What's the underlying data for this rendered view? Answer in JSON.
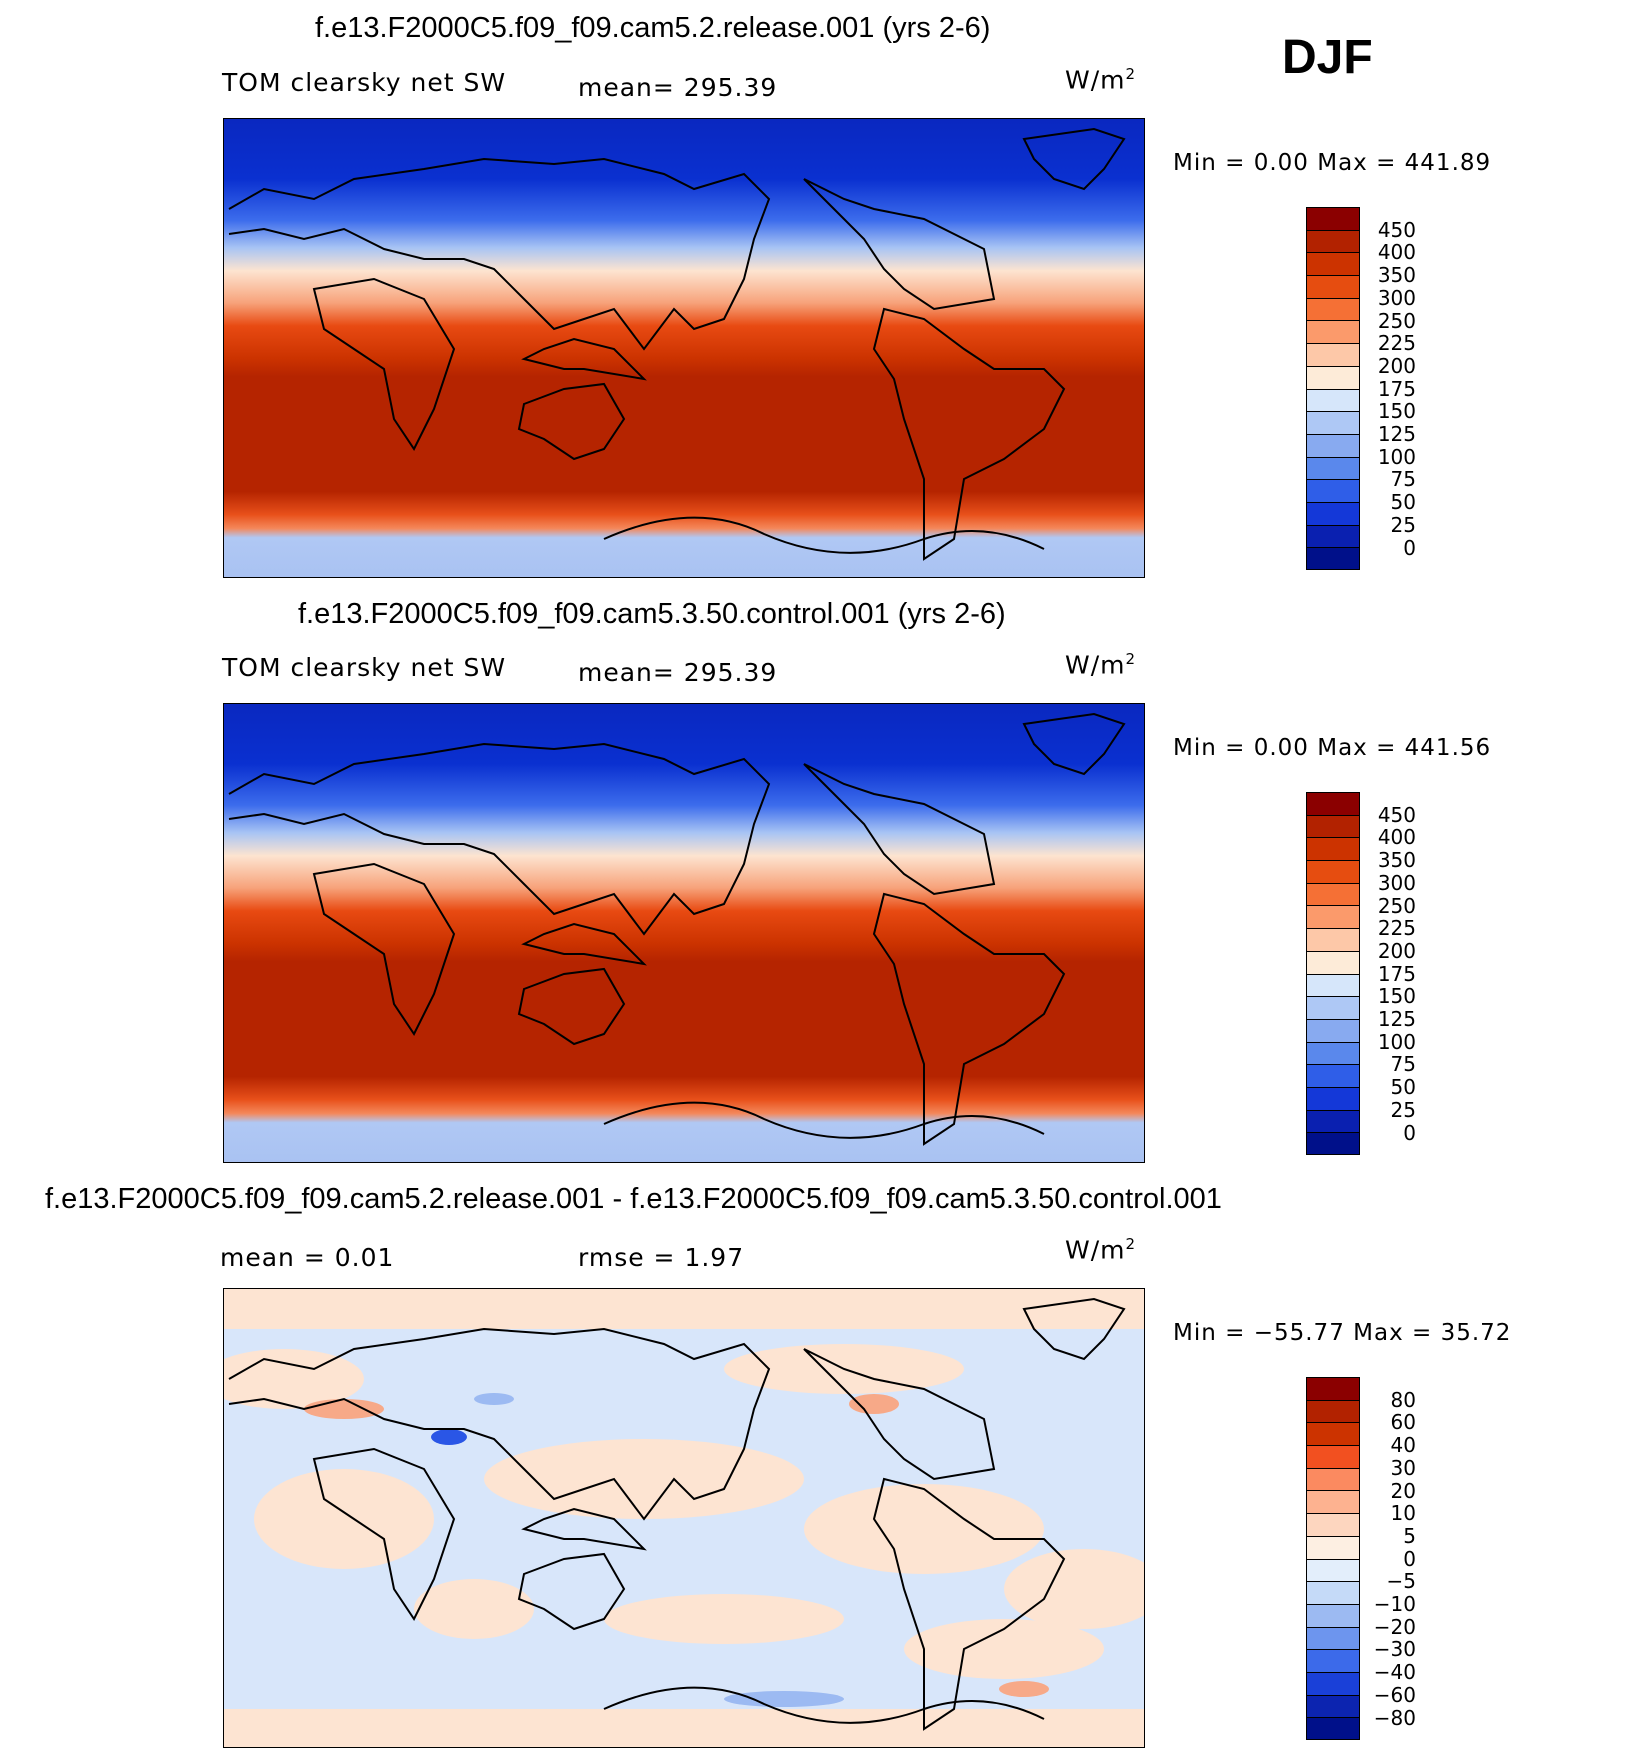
{
  "season": "DJF",
  "units_main": "W/m",
  "units_sup": "2",
  "panels": [
    {
      "title": "f.e13.F2000C5.f09_f09.cam5.2.release.001 (yrs 2-6)",
      "variable": "TOM clearsky net SW",
      "stat_text": "mean=  295.39",
      "minmax": "Min  =    0.00  Max  =  441.89",
      "levels": [
        "450",
        "400",
        "350",
        "300",
        "250",
        "225",
        "200",
        "175",
        "150",
        "125",
        "100",
        "75",
        "50",
        "25",
        "0"
      ],
      "colors": [
        "#8b0000",
        "#b22200",
        "#cc3300",
        "#e64d10",
        "#f57035",
        "#fb9a6b",
        "#fdc8a8",
        "#fdebd8",
        "#d6e6fa",
        "#aec8f5",
        "#88aaf0",
        "#5a88ec",
        "#2f5ee8",
        "#1438d8",
        "#0a20b0",
        "#00108a"
      ]
    },
    {
      "title": "f.e13.F2000C5.f09_f09.cam5.3.50.control.001 (yrs 2-6)",
      "variable": "TOM clearsky net SW",
      "stat_text": "mean=  295.39",
      "minmax": "Min  =    0.00  Max  =  441.56",
      "levels": [
        "450",
        "400",
        "350",
        "300",
        "250",
        "225",
        "200",
        "175",
        "150",
        "125",
        "100",
        "75",
        "50",
        "25",
        "0"
      ],
      "colors": [
        "#8b0000",
        "#b22200",
        "#cc3300",
        "#e64d10",
        "#f57035",
        "#fb9a6b",
        "#fdc8a8",
        "#fdebd8",
        "#d6e6fa",
        "#aec8f5",
        "#88aaf0",
        "#5a88ec",
        "#2f5ee8",
        "#1438d8",
        "#0a20b0",
        "#00108a"
      ]
    },
    {
      "title": "f.e13.F2000C5.f09_f09.cam5.2.release.001 - f.e13.F2000C5.f09_f09.cam5.3.50.control.001",
      "stat_mean": "mean  =     0.01",
      "stat_rmse": "rmse  =     1.97",
      "minmax": "Min  = −55.77  Max  =    35.72",
      "levels": [
        "80",
        "60",
        "40",
        "30",
        "20",
        "10",
        "5",
        "0",
        "−5",
        "−10",
        "−20",
        "−30",
        "−40",
        "−60",
        "−80"
      ],
      "colors": [
        "#8b0000",
        "#b22200",
        "#cc3300",
        "#f25020",
        "#fb8a60",
        "#fdb290",
        "#fdd6bf",
        "#fdefe2",
        "#e3eefb",
        "#c5daf8",
        "#9cbaf2",
        "#6d95ee",
        "#3c6aea",
        "#1a40d8",
        "#0c24b0",
        "#00108a"
      ]
    }
  ]
}
